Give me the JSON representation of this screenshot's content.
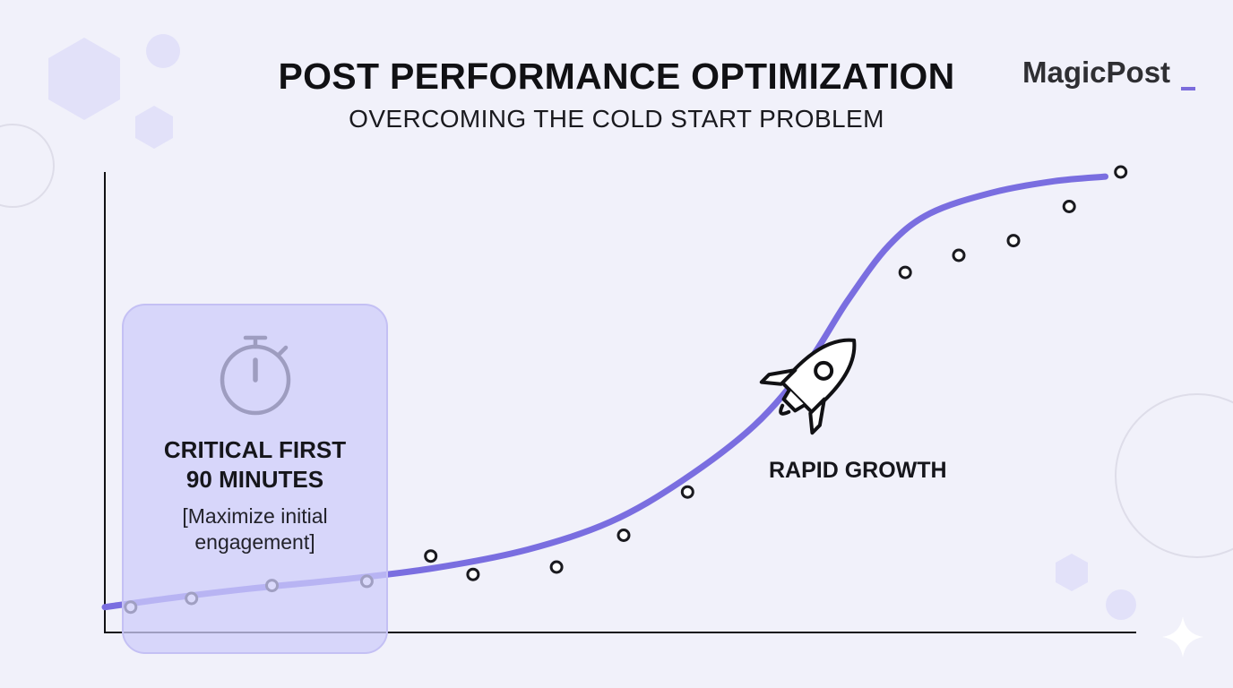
{
  "header": {
    "title": "POST PERFORMANCE OPTIMIZATION",
    "subtitle": "OVERCOMING THE COLD START PROBLEM"
  },
  "brand": {
    "name": "MagicPost"
  },
  "highlight": {
    "title_line1": "CRITICAL FIRST",
    "title_line2": "90 MINUTES",
    "note_line1": "[Maximize initial",
    "note_line2": "engagement]",
    "icon": "stopwatch-icon"
  },
  "growth": {
    "label": "RAPID GROWTH",
    "icon": "rocket-icon"
  },
  "colors": {
    "curve": "#7a6ee0",
    "highlight_fill": "#cecdfa",
    "point_stroke": "#1a1a1f",
    "point_fill": "#ffffff"
  },
  "chart_data": {
    "type": "line",
    "title": "POST PERFORMANCE OPTIMIZATION",
    "subtitle": "OVERCOMING THE COLD START PROBLEM",
    "xlabel": "",
    "ylabel": "",
    "xlim": [
      0,
      100
    ],
    "ylim": [
      0,
      100
    ],
    "grid": false,
    "trend_curve": {
      "x": [
        0,
        6.5,
        14,
        23,
        32,
        41,
        49,
        56,
        63,
        68,
        72,
        76,
        80,
        86,
        92,
        97
      ],
      "y": [
        5.5,
        7.5,
        9.5,
        11.5,
        14,
        18,
        24,
        33,
        45,
        58,
        72,
        84,
        91,
        95.5,
        98,
        99
      ]
    },
    "points": {
      "x": [
        2.5,
        8.4,
        16.2,
        25.4,
        31.6,
        35.7,
        43.8,
        50.3,
        56.5,
        77.6,
        82.8,
        88.1,
        93.5,
        98.5
      ],
      "y": [
        5.5,
        7.4,
        10.2,
        11.1,
        16.6,
        12.6,
        14.2,
        21.1,
        30.5,
        78.2,
        81.9,
        85.1,
        92.5,
        100
      ]
    },
    "annotations": [
      {
        "text": "CRITICAL FIRST 90 MINUTES",
        "x_range": [
          1.5,
          27.5
        ]
      },
      {
        "text": "RAPID GROWTH",
        "x": 73,
        "y": 72
      }
    ]
  }
}
